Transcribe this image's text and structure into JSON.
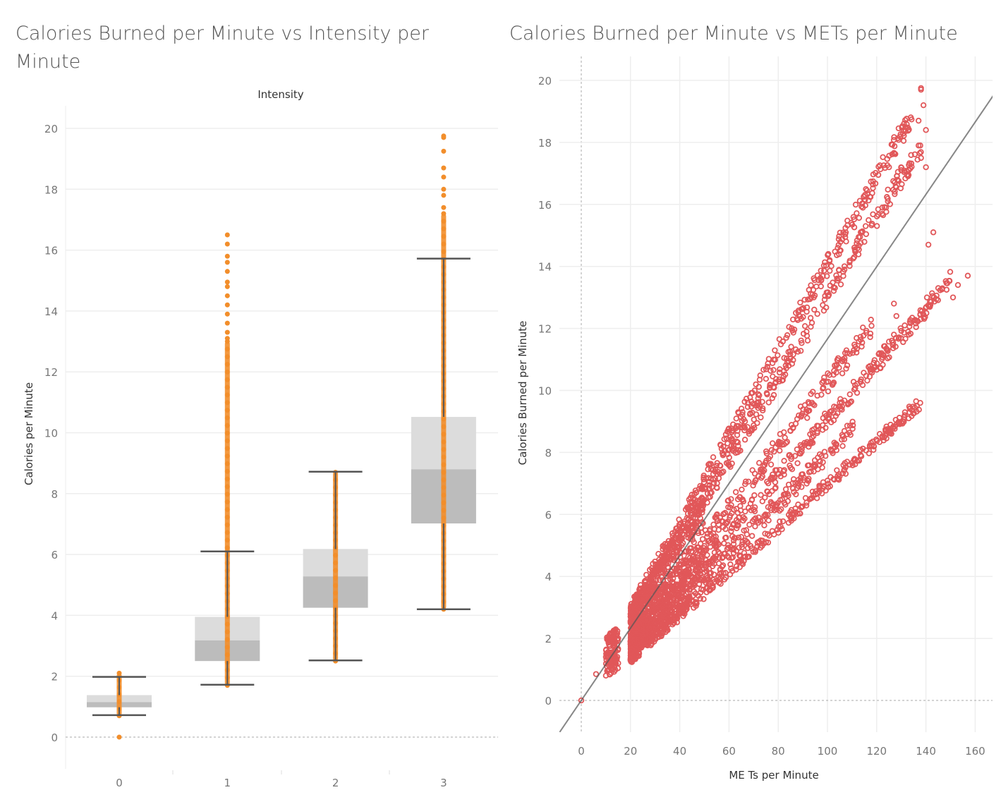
{
  "colors": {
    "orange": "#f28e2b",
    "red": "#e15759",
    "box_upper": "#dcdcdc",
    "box_lower": "#bcbcbc",
    "whisker": "#555555",
    "gridline": "#eeeeee",
    "trend": "#888888"
  },
  "chart_data": [
    {
      "type": "box",
      "title": "Calories Burned per Minute vs Intensity per Minute",
      "column_header": "Intensity",
      "xlabel": "",
      "ylabel": "Calories per Minute",
      "categories": [
        "0",
        "1",
        "2",
        "3"
      ],
      "yticks": [
        "0",
        "2",
        "4",
        "6",
        "8",
        "10",
        "12",
        "14",
        "16",
        "18",
        "20"
      ],
      "ylim": [
        -1,
        21
      ],
      "grid": true,
      "boxes": [
        {
          "category": "0",
          "whisker_low": 0.72,
          "q1": 0.98,
          "median": 1.15,
          "q3": 1.38,
          "whisker_high": 1.98
        },
        {
          "category": "1",
          "whisker_low": 1.72,
          "q1": 2.5,
          "median": 3.18,
          "q3": 3.95,
          "whisker_high": 6.1
        },
        {
          "category": "2",
          "whisker_low": 2.52,
          "q1": 4.25,
          "median": 5.28,
          "q3": 6.18,
          "whisker_high": 8.72
        },
        {
          "category": "3",
          "whisker_low": 4.2,
          "q1": 7.02,
          "median": 8.8,
          "q3": 10.52,
          "whisker_high": 15.72
        }
      ],
      "point_ranges": [
        {
          "category": "0",
          "min": 0.7,
          "max": 2.1,
          "outliers": [
            0.0
          ]
        },
        {
          "category": "1",
          "min": 1.7,
          "max": 13.0,
          "outliers": [
            13.1,
            13.3,
            13.6,
            13.9,
            14.2,
            14.5,
            14.8,
            14.95,
            15.3,
            15.6,
            15.8,
            16.2,
            16.5
          ]
        },
        {
          "category": "2",
          "min": 2.5,
          "max": 8.7,
          "outliers": []
        },
        {
          "category": "3",
          "min": 4.2,
          "max": 17.2,
          "outliers": [
            17.4,
            17.8,
            18.0,
            18.4,
            18.7,
            19.25,
            19.7,
            19.75
          ]
        }
      ]
    },
    {
      "type": "scatter",
      "title": "Calories Burned per Minute vs METs per Minute",
      "xlabel": "ME Ts per Minute",
      "ylabel": "Calories Burned per Minute",
      "xticks": [
        "0",
        "20",
        "40",
        "60",
        "80",
        "100",
        "120",
        "140",
        "160"
      ],
      "yticks": [
        "0",
        "2",
        "4",
        "6",
        "8",
        "10",
        "12",
        "14",
        "16",
        "18",
        "20"
      ],
      "xlim": [
        -8,
        166
      ],
      "ylim": [
        -1,
        21
      ],
      "grid": true,
      "trend_line": {
        "slope": 0.1166,
        "intercept": 0.0
      },
      "clusters": [
        {
          "slope": 0.1405,
          "x_min": 20,
          "x_max": 135,
          "spread": 0.35
        },
        {
          "slope": 0.13,
          "x_min": 20,
          "x_max": 138,
          "spread": 0.35
        },
        {
          "slope": 0.1025,
          "x_min": 20,
          "x_max": 118,
          "spread": 0.35
        },
        {
          "slope": 0.0905,
          "x_min": 20,
          "x_max": 150,
          "spread": 0.3
        },
        {
          "slope": 0.0795,
          "x_min": 20,
          "x_max": 112,
          "spread": 0.3
        },
        {
          "slope": 0.0697,
          "x_min": 20,
          "x_max": 138,
          "spread": 0.2
        }
      ],
      "points": [
        [
          0,
          0
        ],
        [
          6,
          0.85
        ],
        [
          10,
          0.8
        ],
        [
          10,
          1.4
        ],
        [
          12,
          1.1
        ],
        [
          15,
          2.0
        ],
        [
          15,
          1.2
        ],
        [
          138,
          19.7
        ],
        [
          138,
          19.75
        ],
        [
          139,
          19.2
        ],
        [
          137,
          18.7
        ],
        [
          140,
          18.4
        ],
        [
          137,
          17.9
        ],
        [
          138,
          17.5
        ],
        [
          140,
          17.2
        ],
        [
          125,
          17.2
        ],
        [
          133,
          17.1
        ],
        [
          143,
          15.1
        ],
        [
          141,
          14.7
        ],
        [
          145,
          13.3
        ],
        [
          151,
          13.0
        ],
        [
          153,
          13.4
        ],
        [
          157,
          13.7
        ],
        [
          127,
          12.8
        ],
        [
          128,
          12.4
        ],
        [
          127,
          11.8
        ],
        [
          136,
          9.65
        ]
      ]
    }
  ]
}
